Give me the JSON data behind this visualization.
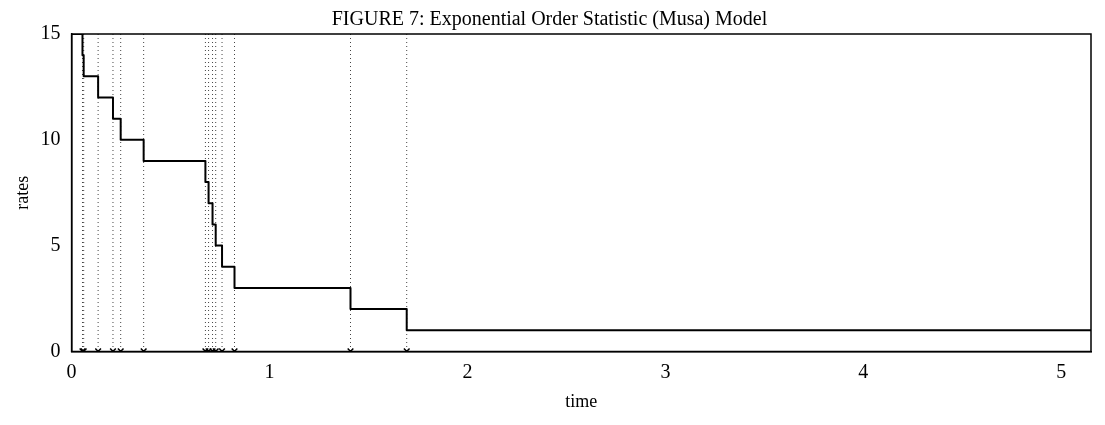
{
  "chart_data": {
    "type": "step",
    "title": "FIGURE 7: Exponential Order Statistic (Musa) Model",
    "xlabel": "time",
    "ylabel": "rates",
    "xlim": [
      0,
      5.15
    ],
    "ylim": [
      0,
      15
    ],
    "xticks": [
      0,
      1,
      2,
      3,
      4,
      5
    ],
    "yticks": [
      0,
      5,
      10,
      15
    ],
    "grid": false,
    "legend": false,
    "series": [
      {
        "color": "#000000",
        "marker": "none",
        "line_style": "solid",
        "x": [
          0,
          0.055,
          0.061,
          0.134,
          0.209,
          0.248,
          0.364,
          0.676,
          0.692,
          0.712,
          0.728,
          0.76,
          0.823,
          1.409,
          1.693,
          5.15
        ],
        "values": [
          15,
          14,
          13,
          12,
          11,
          10,
          9,
          8,
          7,
          6,
          5,
          4,
          3,
          2,
          1,
          1
        ]
      },
      {
        "type": "scatter",
        "color": "#000000",
        "marker": "cross",
        "x": [
          0.055,
          0.061,
          0.134,
          0.209,
          0.248,
          0.364,
          0.676,
          0.692,
          0.712,
          0.728,
          0.76,
          0.823,
          1.409,
          1.693
        ],
        "values": [
          0,
          0,
          0,
          0,
          0,
          0,
          0,
          0,
          0,
          0,
          0,
          0,
          0,
          0
        ]
      }
    ],
    "ref_lines": [
      {
        "axis": "x",
        "value": 0.055,
        "color": "#444444",
        "line_style": "dotted"
      },
      {
        "axis": "x",
        "value": 0.061,
        "color": "#444444",
        "line_style": "dotted"
      },
      {
        "axis": "x",
        "value": 0.134,
        "color": "#444444",
        "line_style": "dotted"
      },
      {
        "axis": "x",
        "value": 0.209,
        "color": "#444444",
        "line_style": "dotted"
      },
      {
        "axis": "x",
        "value": 0.248,
        "color": "#444444",
        "line_style": "dotted"
      },
      {
        "axis": "x",
        "value": 0.364,
        "color": "#444444",
        "line_style": "dotted"
      },
      {
        "axis": "x",
        "value": 0.676,
        "color": "#444444",
        "line_style": "dotted"
      },
      {
        "axis": "x",
        "value": 0.692,
        "color": "#444444",
        "line_style": "dotted"
      },
      {
        "axis": "x",
        "value": 0.712,
        "color": "#444444",
        "line_style": "dotted"
      },
      {
        "axis": "x",
        "value": 0.728,
        "color": "#444444",
        "line_style": "dotted"
      },
      {
        "axis": "x",
        "value": 0.76,
        "color": "#444444",
        "line_style": "dotted"
      },
      {
        "axis": "x",
        "value": 0.823,
        "color": "#444444",
        "line_style": "dotted"
      },
      {
        "axis": "x",
        "value": 1.409,
        "color": "#444444",
        "line_style": "dotted"
      },
      {
        "axis": "x",
        "value": 1.693,
        "color": "#444444",
        "line_style": "dotted"
      }
    ]
  }
}
